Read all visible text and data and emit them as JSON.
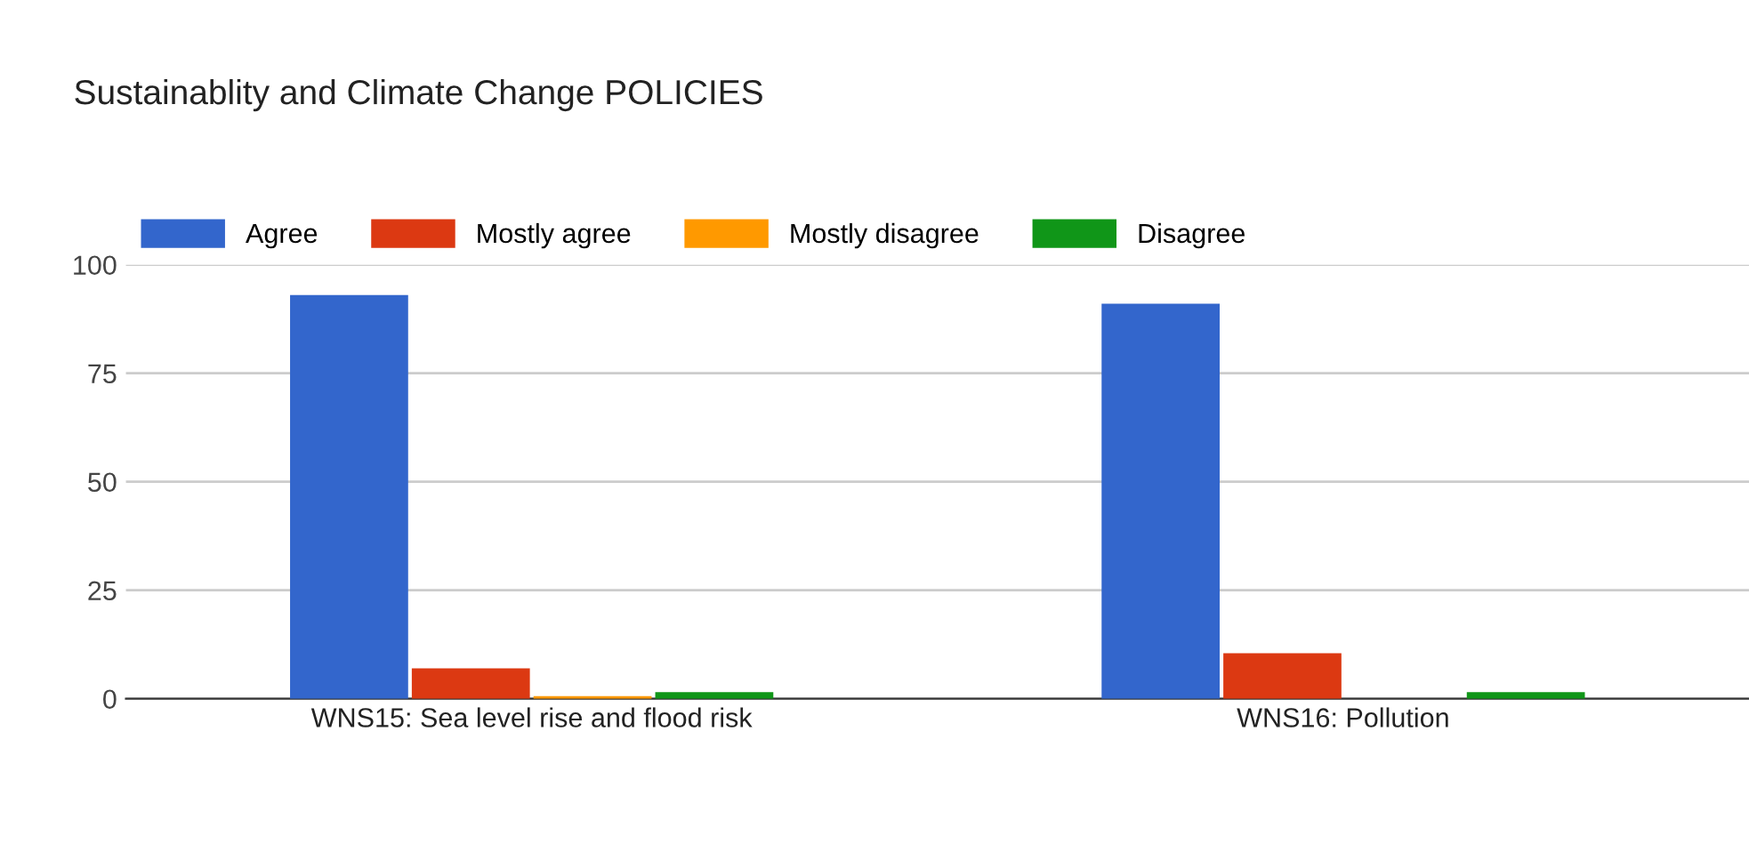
{
  "chart_data": {
    "type": "bar",
    "title": "Sustainablity and Climate Change POLICIES",
    "categories": [
      "WNS15: Sea level rise and flood risk",
      "WNS16: Pollution"
    ],
    "series": [
      {
        "name": "Agree",
        "color": "#3366cc",
        "values": [
          93,
          91
        ]
      },
      {
        "name": "Mostly agree",
        "color": "#dc3912",
        "values": [
          7,
          10.5
        ]
      },
      {
        "name": "Mostly disagree",
        "color": "#ff9900",
        "values": [
          0.6,
          0
        ]
      },
      {
        "name": "Disagree",
        "color": "#109618",
        "values": [
          1.5,
          1.5
        ]
      }
    ],
    "ylim": [
      0,
      100
    ],
    "yticks": [
      0,
      25,
      50,
      75,
      100
    ],
    "grid": "y",
    "legend": "top left"
  }
}
